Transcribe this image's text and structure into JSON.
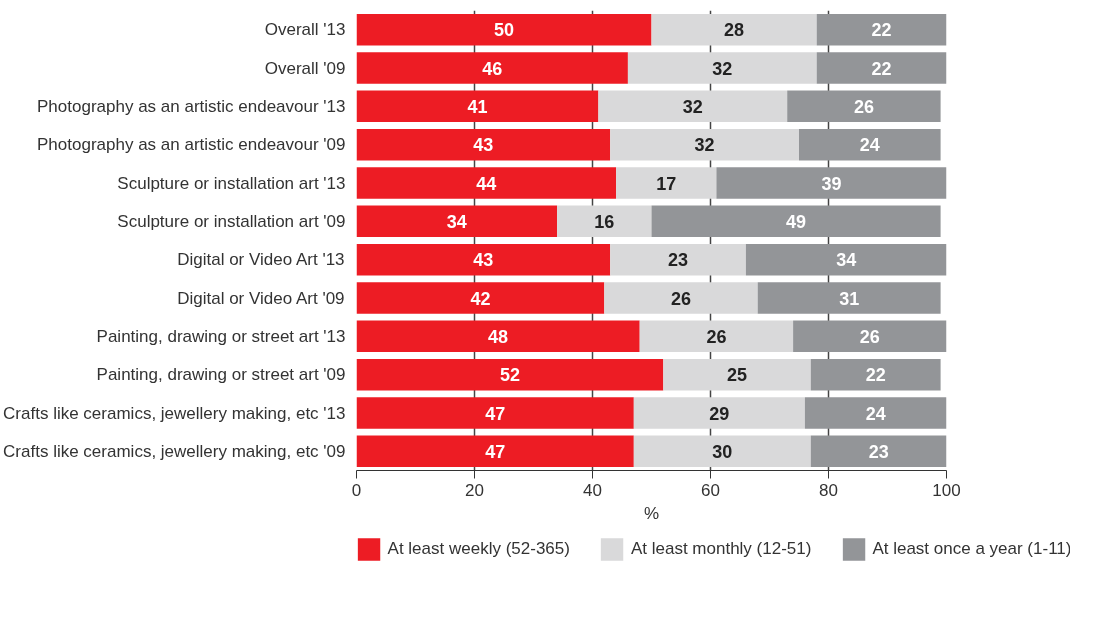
{
  "chart_data": {
    "type": "bar",
    "orientation": "horizontal",
    "stacked": true,
    "xlabel": "%",
    "categories": [
      "Overall '13",
      "Overall '09",
      "Photography as an artistic endeavour '13",
      "Photography as an artistic endeavour '09",
      "Sculpture or installation art '13",
      "Sculpture or installation art '09",
      "Digital or Video Art '13",
      "Digital or Video Art '09",
      "Painting, drawing or street art '13",
      "Painting, drawing or street art '09",
      "Crafts like ceramics, jewellery making, etc '13",
      "Crafts like ceramics, jewellery making, etc '09"
    ],
    "series": [
      {
        "name": "At least weekly (52-365)",
        "color": "#ed1c24",
        "values": [
          50,
          46,
          41,
          43,
          44,
          34,
          43,
          42,
          48,
          52,
          47,
          47
        ]
      },
      {
        "name": "At least monthly (12-51)",
        "color": "#d9d9da",
        "values": [
          28,
          32,
          32,
          32,
          17,
          16,
          23,
          26,
          26,
          25,
          29,
          30
        ]
      },
      {
        "name": "At least once a year (1-11)",
        "color": "#939598",
        "values": [
          22,
          22,
          26,
          24,
          39,
          49,
          34,
          31,
          26,
          22,
          24,
          23
        ]
      }
    ],
    "xlim": [
      0,
      100
    ],
    "xticks": [
      0,
      20,
      40,
      60,
      80,
      100
    ],
    "grid": "x",
    "legend": "bottom",
    "data_labels": true
  }
}
